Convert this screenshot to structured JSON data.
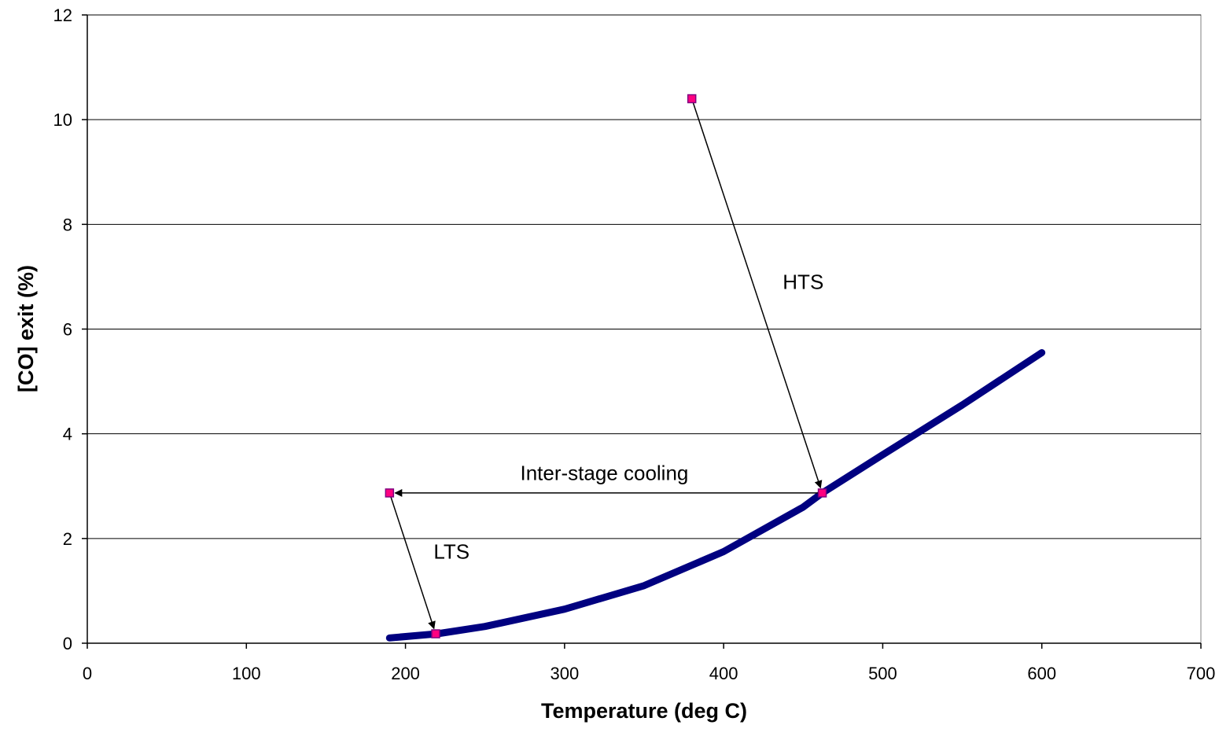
{
  "chart_data": {
    "type": "scatter",
    "title": "",
    "xlabel": "Temperature (deg C)",
    "ylabel": "[CO] exit (%)",
    "xlim": [
      0,
      700
    ],
    "ylim": [
      0,
      12
    ],
    "xticks": [
      0,
      100,
      200,
      300,
      400,
      500,
      600,
      700
    ],
    "yticks": [
      0,
      2,
      4,
      6,
      8,
      10,
      12
    ],
    "grid": "horizontal",
    "legend": "none",
    "colors": {
      "curve": "#000080",
      "marker_fill": "#FF0080",
      "marker_edge": "#800080",
      "grid": "#000000"
    },
    "series": [
      {
        "style": "line",
        "x": [
          190,
          220,
          250,
          300,
          350,
          400,
          450,
          462,
          500,
          550,
          600
        ],
        "y": [
          0.1,
          0.18,
          0.32,
          0.65,
          1.1,
          1.75,
          2.6,
          2.87,
          3.6,
          4.55,
          5.55
        ]
      },
      {
        "style": "markers",
        "x": [
          380,
          462,
          190,
          219
        ],
        "y": [
          10.4,
          2.87,
          2.87,
          0.18
        ]
      }
    ],
    "annotations": [
      {
        "text": "HTS",
        "x": 450,
        "y": 6.9,
        "arrow_from": [
          380,
          10.4
        ],
        "arrow_to": [
          462,
          2.87
        ]
      },
      {
        "text": "Inter-stage cooling",
        "x": 325,
        "y": 3.25,
        "arrow_from": [
          462,
          2.87
        ],
        "arrow_to": [
          190,
          2.87
        ]
      },
      {
        "text": "LTS",
        "x": 229,
        "y": 1.75,
        "arrow_from": [
          190,
          2.87
        ],
        "arrow_to": [
          219,
          0.18
        ]
      }
    ]
  }
}
